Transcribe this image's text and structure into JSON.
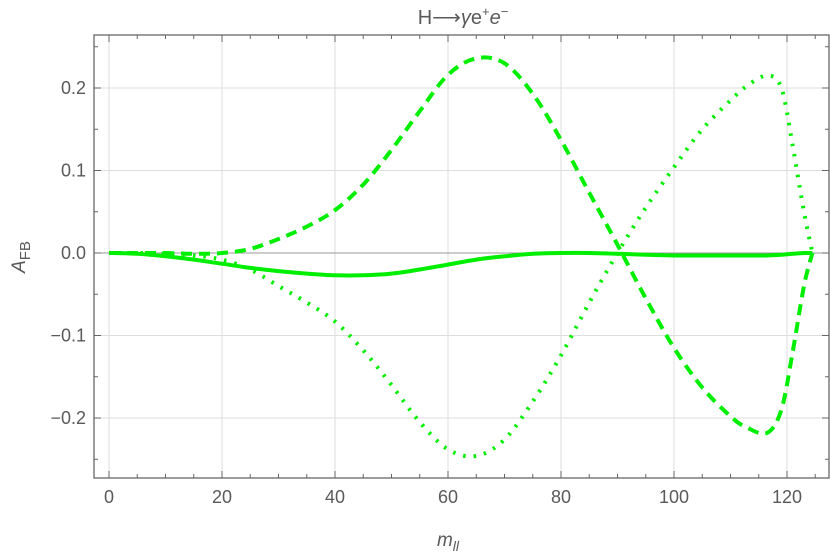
{
  "chart_data": {
    "type": "line",
    "title": "H⟶γe⁺e⁻",
    "title_parts": {
      "main": "H⟶",
      "italic1": "γ",
      "roman": "e",
      "sup1": "+",
      "italic2": "e",
      "sup2": "−"
    },
    "xlabel": "m_ll",
    "xlabel_parts": {
      "main": "m",
      "sub": "ll"
    },
    "ylabel": "A_FB",
    "ylabel_parts": {
      "main": "A",
      "sub": "FB"
    },
    "xlim": [
      -2.7,
      127
    ],
    "ylim": [
      -0.273,
      0.263
    ],
    "xticks": [
      0,
      20,
      40,
      60,
      80,
      100,
      120
    ],
    "xtick_labels": [
      "0",
      "20",
      "40",
      "60",
      "80",
      "100",
      "120"
    ],
    "yticks": [
      -0.2,
      -0.1,
      0.0,
      0.1,
      0.2
    ],
    "ytick_labels": [
      "−0.2",
      "−0.1",
      "0.0",
      "0.1",
      "0.2"
    ],
    "grid": true,
    "legend": null,
    "colors": {
      "series": "#00ee00",
      "frame": "#666666",
      "grid": "#dddddd",
      "zero_line": "#999999",
      "text": "#5a5a5a"
    },
    "x": [
      0,
      5,
      10,
      15,
      20,
      25,
      30,
      35,
      40,
      45,
      50,
      55,
      60,
      65,
      70,
      75,
      80,
      85,
      90,
      95,
      100,
      105,
      110,
      113,
      116.5,
      119,
      121,
      123,
      124.5
    ],
    "series": [
      {
        "name": "solid",
        "style": "solid",
        "values": [
          0.0,
          -0.001,
          -0.004,
          -0.008,
          -0.013,
          -0.018,
          -0.022,
          -0.025,
          -0.027,
          -0.027,
          -0.025,
          -0.02,
          -0.014,
          -0.008,
          -0.004,
          -0.001,
          0.0,
          0.0,
          -0.001,
          -0.002,
          -0.003,
          -0.003,
          -0.003,
          -0.003,
          -0.003,
          -0.002,
          -0.001,
          0.0,
          0.0
        ]
      },
      {
        "name": "dashed",
        "style": "dashed",
        "values": [
          0.0,
          0.0,
          0.0,
          -0.001,
          0.0,
          0.005,
          0.017,
          0.032,
          0.052,
          0.083,
          0.125,
          0.172,
          0.216,
          0.236,
          0.23,
          0.193,
          0.137,
          0.073,
          0.01,
          -0.055,
          -0.115,
          -0.163,
          -0.198,
          -0.212,
          -0.218,
          -0.19,
          -0.12,
          -0.04,
          0.0
        ]
      },
      {
        "name": "dotted",
        "style": "dotted",
        "values": [
          0.0,
          0.0,
          -0.001,
          -0.003,
          -0.008,
          -0.02,
          -0.04,
          -0.06,
          -0.083,
          -0.118,
          -0.16,
          -0.205,
          -0.238,
          -0.246,
          -0.226,
          -0.18,
          -0.124,
          -0.06,
          0.0,
          0.055,
          0.104,
          0.15,
          0.185,
          0.203,
          0.215,
          0.2,
          0.13,
          0.05,
          0.0
        ]
      }
    ]
  }
}
